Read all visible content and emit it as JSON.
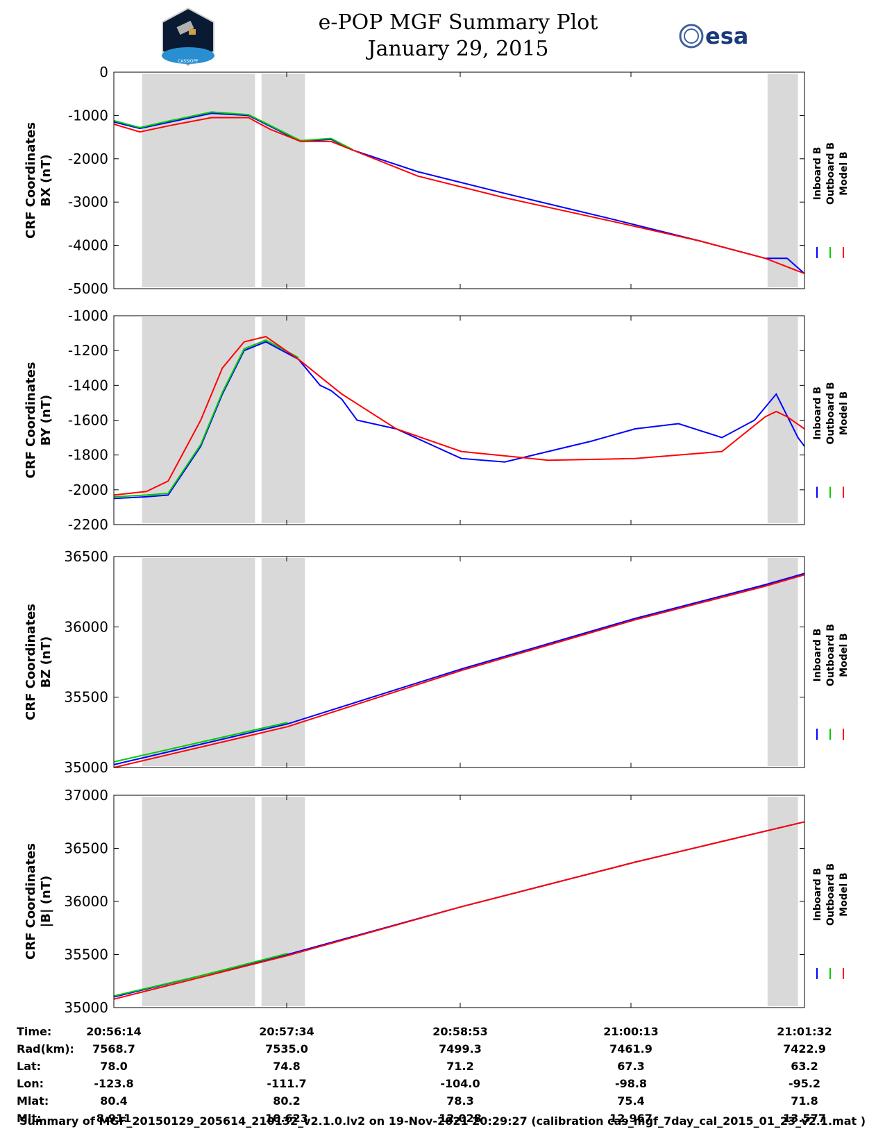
{
  "header": {
    "title": "e-POP MGF Summary Plot",
    "date": "January 29, 2015",
    "esa_logo_text": "esa",
    "cassiope_logo_text": "CASSIOPE"
  },
  "legend": {
    "labels": [
      "Inboard B",
      "Outboard B",
      "Model B"
    ],
    "colors": [
      "#0000ff",
      "#00cc00",
      "#ff0000"
    ]
  },
  "chart_data": [
    {
      "type": "line",
      "ylabel": [
        "CRF Coordinates",
        "BX (nT)"
      ],
      "ylim": [
        -5000,
        0
      ],
      "yticks": [
        -5000,
        -4000,
        -3000,
        -2000,
        -1000,
        0
      ],
      "x_range": [
        0,
        318
      ],
      "shaded_regions": [
        [
          13,
          65
        ],
        [
          68,
          88
        ],
        [
          301,
          315
        ]
      ],
      "series": [
        {
          "name": "Inboard B",
          "color": "#0000ff",
          "x": [
            0,
            12,
            26,
            45,
            62,
            72,
            86,
            100,
            110,
            140,
            180,
            230,
            270,
            300,
            310,
            318
          ],
          "y": [
            -1150,
            -1300,
            -1150,
            -950,
            -1000,
            -1250,
            -1600,
            -1550,
            -1800,
            -2300,
            -2800,
            -3400,
            -3900,
            -4300,
            -4300,
            -4650
          ]
        },
        {
          "name": "Outboard B",
          "color": "#00cc00",
          "x": [
            0,
            12,
            26,
            45,
            62,
            72,
            86,
            100,
            110
          ],
          "y": [
            -1120,
            -1280,
            -1120,
            -920,
            -980,
            -1230,
            -1580,
            -1530,
            -1790
          ]
        },
        {
          "name": "Model B",
          "color": "#ff0000",
          "x": [
            0,
            12,
            26,
            45,
            62,
            72,
            86,
            100,
            110,
            140,
            180,
            230,
            270,
            300,
            318
          ],
          "y": [
            -1200,
            -1380,
            -1230,
            -1050,
            -1050,
            -1320,
            -1600,
            -1600,
            -1800,
            -2400,
            -2900,
            -3450,
            -3900,
            -4300,
            -4650
          ]
        }
      ]
    },
    {
      "type": "line",
      "ylabel": [
        "CRF Coordinates",
        "BY (nT)"
      ],
      "ylim": [
        -2200,
        -1000
      ],
      "yticks": [
        -2200,
        -2000,
        -1800,
        -1600,
        -1400,
        -1200,
        -1000
      ],
      "x_range": [
        0,
        318
      ],
      "shaded_regions": [
        [
          13,
          65
        ],
        [
          68,
          88
        ],
        [
          301,
          315
        ]
      ],
      "series": [
        {
          "name": "Inboard B",
          "color": "#0000ff",
          "x": [
            0,
            15,
            25,
            40,
            50,
            60,
            70,
            85,
            95,
            100,
            105,
            112,
            130,
            160,
            180,
            200,
            220,
            240,
            260,
            280,
            295,
            305,
            315,
            318
          ],
          "y": [
            -2050,
            -2040,
            -2030,
            -1750,
            -1450,
            -1200,
            -1150,
            -1250,
            -1400,
            -1430,
            -1480,
            -1600,
            -1650,
            -1820,
            -1840,
            -1780,
            -1720,
            -1650,
            -1620,
            -1700,
            -1600,
            -1450,
            -1700,
            -1750
          ]
        },
        {
          "name": "Outboard B",
          "color": "#00cc00",
          "x": [
            0,
            15,
            25,
            40,
            50,
            60,
            70,
            85
          ],
          "y": [
            -2040,
            -2030,
            -2020,
            -1740,
            -1440,
            -1190,
            -1140,
            -1240
          ]
        },
        {
          "name": "Model B",
          "color": "#ff0000",
          "x": [
            0,
            15,
            25,
            40,
            50,
            60,
            70,
            85,
            95,
            105,
            130,
            160,
            200,
            240,
            280,
            300,
            305,
            310,
            318
          ],
          "y": [
            -2030,
            -2010,
            -1950,
            -1600,
            -1300,
            -1150,
            -1120,
            -1250,
            -1350,
            -1450,
            -1650,
            -1780,
            -1830,
            -1820,
            -1780,
            -1580,
            -1550,
            -1580,
            -1650
          ]
        }
      ]
    },
    {
      "type": "line",
      "ylabel": [
        "CRF Coordinates",
        "BZ (nT)"
      ],
      "ylim": [
        35000,
        36500
      ],
      "yticks": [
        35000,
        35500,
        36000,
        36500
      ],
      "x_range": [
        0,
        318
      ],
      "shaded_regions": [
        [
          13,
          65
        ],
        [
          68,
          88
        ],
        [
          301,
          315
        ]
      ],
      "series": [
        {
          "name": "Inboard B",
          "color": "#0000ff",
          "x": [
            0,
            80,
            160,
            240,
            300,
            318
          ],
          "y": [
            35020,
            35310,
            35700,
            36060,
            36300,
            36380
          ]
        },
        {
          "name": "Outboard B",
          "color": "#00cc00",
          "x": [
            0,
            40,
            80
          ],
          "y": [
            35040,
            35180,
            35320
          ]
        },
        {
          "name": "Model B",
          "color": "#ff0000",
          "x": [
            0,
            80,
            160,
            240,
            300,
            318
          ],
          "y": [
            35000,
            35290,
            35690,
            36050,
            36290,
            36370
          ]
        }
      ]
    },
    {
      "type": "line",
      "ylabel": [
        "CRF Coordinates",
        "|B| (nT)"
      ],
      "ylim": [
        35000,
        37000
      ],
      "yticks": [
        35000,
        35500,
        36000,
        36500,
        37000
      ],
      "x_range": [
        0,
        318
      ],
      "shaded_regions": [
        [
          13,
          65
        ],
        [
          68,
          88
        ],
        [
          301,
          315
        ]
      ],
      "series": [
        {
          "name": "Inboard B",
          "color": "#0000ff",
          "x": [
            0,
            80,
            160,
            240,
            318
          ],
          "y": [
            35100,
            35500,
            35950,
            36370,
            36750
          ]
        },
        {
          "name": "Outboard B",
          "color": "#00cc00",
          "x": [
            0,
            40,
            80
          ],
          "y": [
            35110,
            35300,
            35510
          ]
        },
        {
          "name": "Model B",
          "color": "#ff0000",
          "x": [
            0,
            80,
            160,
            240,
            318
          ],
          "y": [
            35080,
            35490,
            35950,
            36370,
            36750
          ]
        }
      ]
    }
  ],
  "ephemeris": {
    "labels": [
      "Time:",
      "Rad(km):",
      "Lat:",
      "Lon:",
      "Mlat:",
      "Mlt:"
    ],
    "columns": [
      [
        "20:56:14",
        "7568.7",
        "78.0",
        "-123.8",
        "80.4",
        "8.911"
      ],
      [
        "20:57:34",
        "7535.0",
        "74.8",
        "-111.7",
        "80.2",
        "10.623"
      ],
      [
        "20:58:53",
        "7499.3",
        "71.2",
        "-104.0",
        "78.3",
        "12.028"
      ],
      [
        "21:00:13",
        "7461.9",
        "67.3",
        "-98.8",
        "75.4",
        "12.967"
      ],
      [
        "21:01:32",
        "7422.9",
        "63.2",
        "-95.2",
        "71.8",
        "13.577"
      ]
    ]
  },
  "footer": {
    "text": "Summary of MGF_20150129_205614_210132_v2.1.0.lv2 on 19-Nov-2021 20:29:27 (calibration cas_mgf_7day_cal_2015_01_23_v2.1.mat )"
  }
}
